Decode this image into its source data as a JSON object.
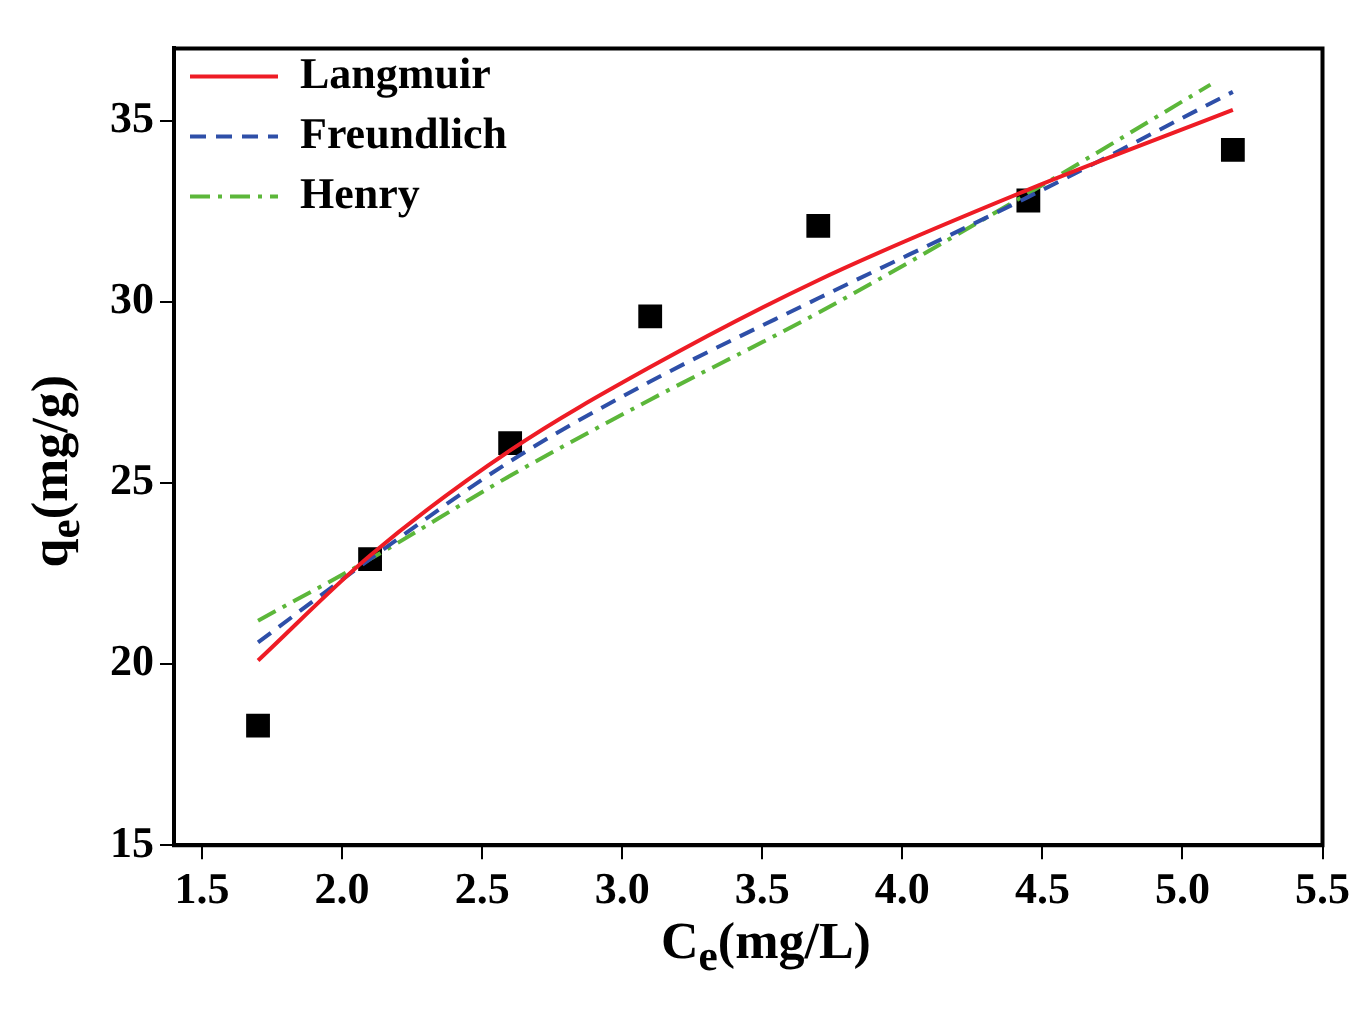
{
  "chart_data": {
    "type": "line",
    "xlabel": "C$_{e}$(mg/L)",
    "ylabel": "q$_{e}$(mg/g)",
    "xlim": [
      1.4,
      5.5
    ],
    "xticks": [
      {
        "value": 1.5,
        "label": "1.5"
      },
      {
        "value": 2,
        "label": "2.0"
      },
      {
        "value": 2.5,
        "label": "2.5"
      },
      {
        "value": 3,
        "label": "3.0"
      },
      {
        "value": 3.5,
        "label": "3.5"
      },
      {
        "value": 4,
        "label": "4.0"
      },
      {
        "value": 4.5,
        "label": "4.5"
      },
      {
        "value": 5,
        "label": "5.0"
      },
      {
        "value": 5.5,
        "label": "5.5"
      }
    ],
    "ylim": [
      15,
      37
    ],
    "yticks": [
      15,
      20,
      25,
      30,
      35
    ],
    "grid": false,
    "legend": "top left",
    "series": [
      {
        "type": "scatter",
        "color": "#000000",
        "marker": "square",
        "x": [
          1.7,
          2.1,
          2.6,
          3.1,
          3.7,
          4.45,
          5.18
        ],
        "values": [
          18.3,
          22.9,
          26.1,
          29.6,
          32.1,
          32.8,
          34.2
        ]
      },
      {
        "name": "Langmuir",
        "color": "#ee1c25",
        "line_style": "solid",
        "x": [
          1.7,
          2.1,
          2.6,
          3.1,
          3.7,
          4.45,
          5.18
        ],
        "values": [
          20.1,
          23.0,
          25.9,
          28.2,
          30.6,
          33.1,
          35.3
        ]
      },
      {
        "name": "Freundlich",
        "color": "#2e4fa8",
        "line_style": "dashed",
        "x": [
          1.7,
          2.1,
          2.6,
          3.1,
          3.7,
          4.45,
          5.18
        ],
        "values": [
          20.6,
          22.9,
          25.6,
          27.8,
          30.1,
          32.9,
          35.8
        ]
      },
      {
        "name": "Henry",
        "color": "#5cb73a",
        "line_style": "dashdot",
        "x": [
          1.7,
          2.1,
          2.6,
          3.1,
          3.7,
          4.45,
          5.1
        ],
        "values": [
          21.2,
          22.9,
          25.2,
          27.3,
          29.7,
          33.0,
          36.0
        ]
      }
    ]
  }
}
